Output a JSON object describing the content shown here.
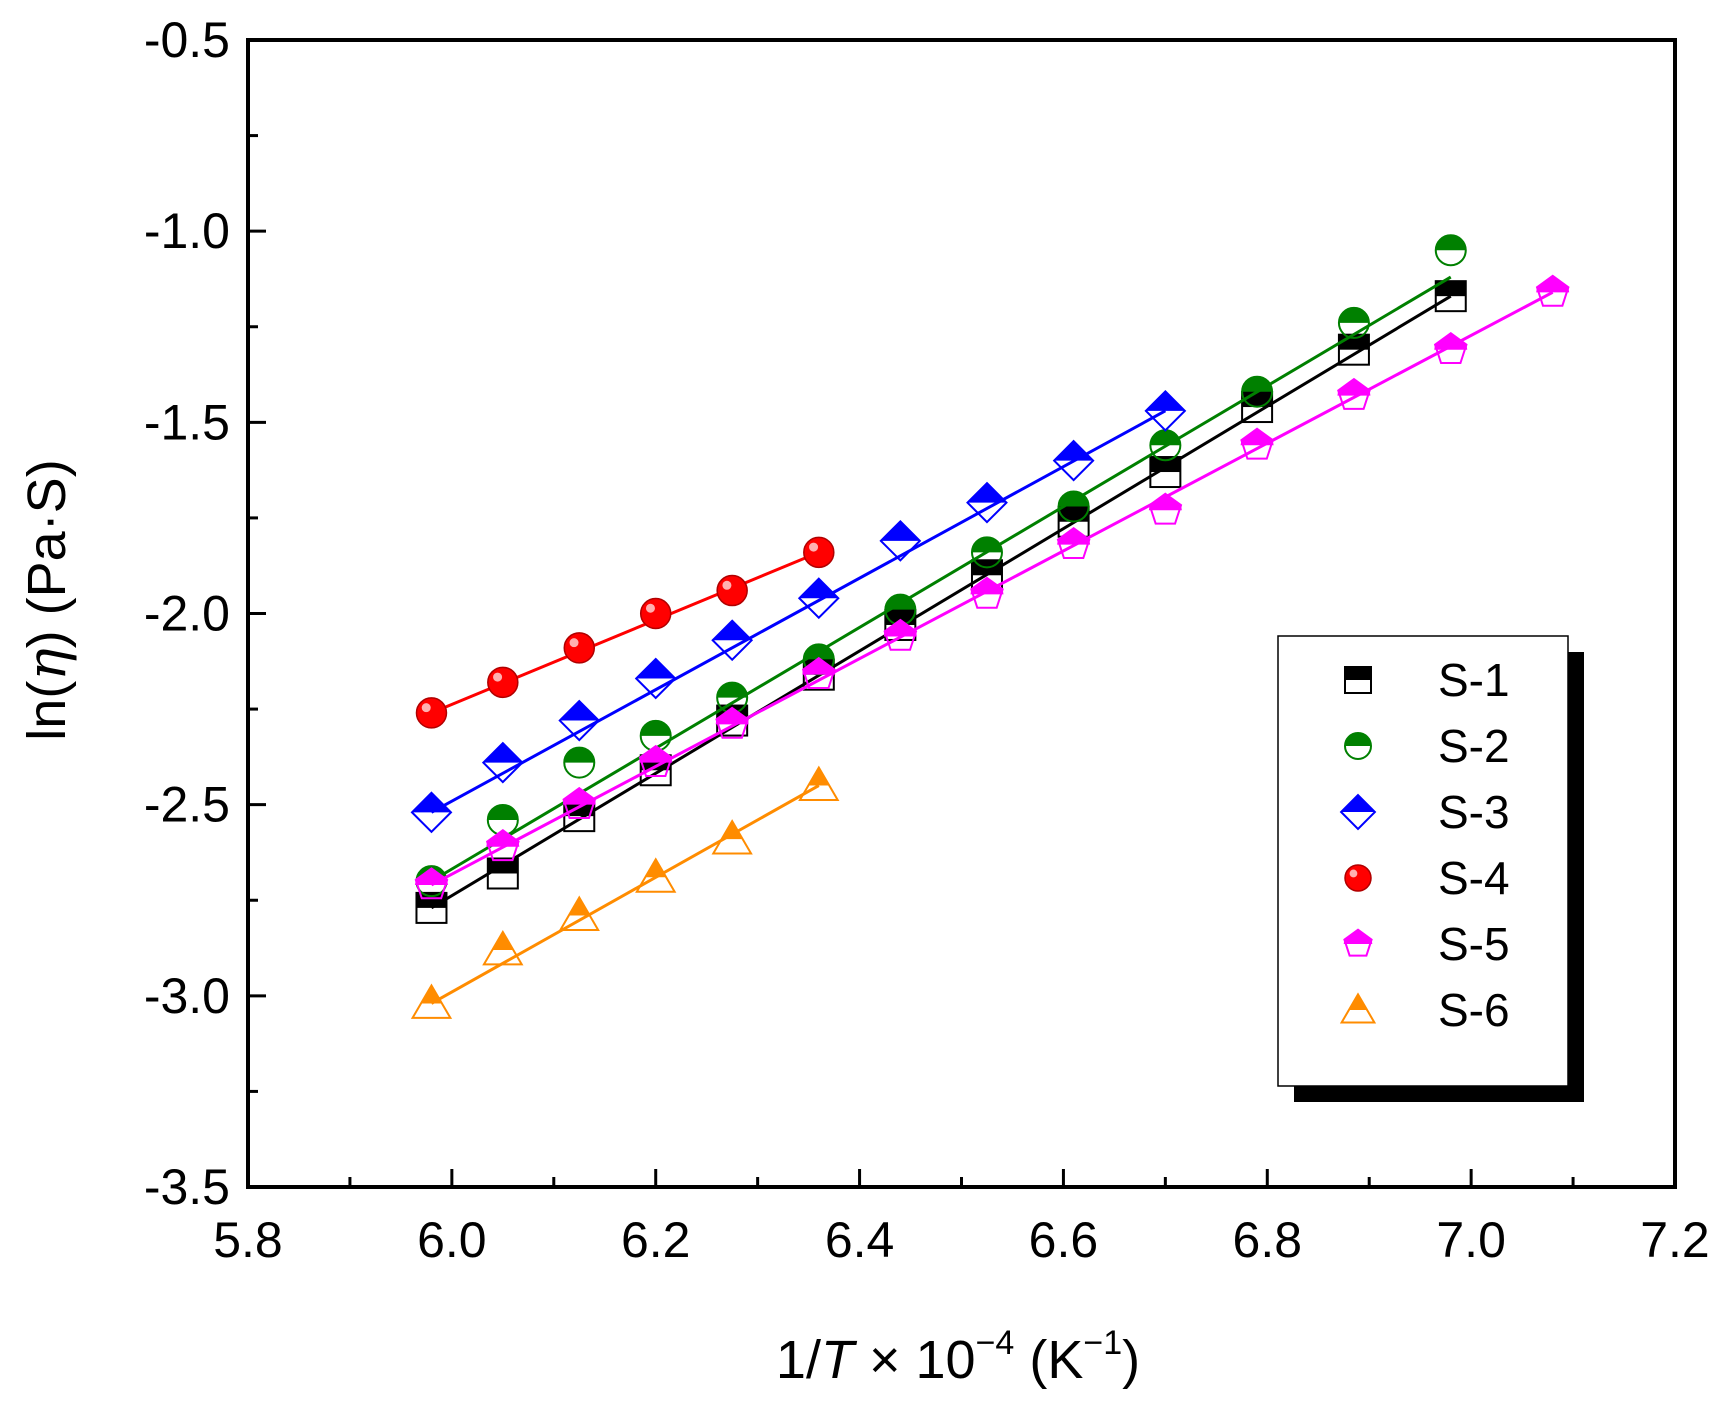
{
  "chart_data": {
    "type": "scatter",
    "title": "",
    "xlabel": "1/T × 10⁻⁴ (K⁻¹)",
    "xlabel_parts": {
      "prefix": "1/",
      "var": "T",
      "mid": " × 10",
      "sup": "−4",
      "unit_open": " (K",
      "unit_sup": "−1",
      "unit_close": ")"
    },
    "ylabel": "ln(η) (Pa·S)",
    "ylabel_parts": {
      "prefix": "ln(",
      "var": "η",
      "suffix": ") (Pa·S)"
    },
    "xlim": [
      5.8,
      7.2
    ],
    "ylim": [
      -3.5,
      -0.5
    ],
    "xticks": [
      "5.8",
      "6.0",
      "6.2",
      "6.4",
      "6.6",
      "6.8",
      "7.0",
      "7.2"
    ],
    "yticks": [
      "-0.5",
      "-1.0",
      "-1.5",
      "-2.0",
      "-2.5",
      "-3.0",
      "-3.5"
    ],
    "grid": false,
    "legend_position": "right-middle",
    "series": [
      {
        "name": "S-1",
        "color": "#000000",
        "marker": "square",
        "x": [
          5.98,
          6.05,
          6.125,
          6.2,
          6.275,
          6.36,
          6.44,
          6.525,
          6.61,
          6.7,
          6.79,
          6.885,
          6.98
        ],
        "y": [
          -2.77,
          -2.68,
          -2.53,
          -2.41,
          -2.28,
          -2.16,
          -2.03,
          -1.9,
          -1.76,
          -1.63,
          -1.46,
          -1.31,
          -1.17
        ],
        "fit": [
          [
            5.98,
            -2.77
          ],
          [
            6.98,
            -1.17
          ]
        ]
      },
      {
        "name": "S-2",
        "color": "#008000",
        "marker": "circle-half",
        "x": [
          5.98,
          6.05,
          6.125,
          6.2,
          6.275,
          6.36,
          6.44,
          6.525,
          6.61,
          6.7,
          6.79,
          6.885,
          6.98
        ],
        "y": [
          -2.7,
          -2.54,
          -2.39,
          -2.32,
          -2.22,
          -2.12,
          -1.99,
          -1.84,
          -1.72,
          -1.56,
          -1.42,
          -1.24,
          -1.05
        ],
        "fit": [
          [
            5.98,
            -2.7
          ],
          [
            6.98,
            -1.12
          ]
        ]
      },
      {
        "name": "S-3",
        "color": "#0000ff",
        "marker": "diamond",
        "x": [
          5.98,
          6.05,
          6.125,
          6.2,
          6.275,
          6.36,
          6.44,
          6.525,
          6.61,
          6.7
        ],
        "y": [
          -2.52,
          -2.39,
          -2.28,
          -2.17,
          -2.07,
          -1.96,
          -1.81,
          -1.71,
          -1.6,
          -1.47
        ],
        "fit": [
          [
            5.98,
            -2.52
          ],
          [
            6.7,
            -1.47
          ]
        ]
      },
      {
        "name": "S-4",
        "color": "#ff0000",
        "marker": "ball",
        "x": [
          5.98,
          6.05,
          6.125,
          6.2,
          6.275,
          6.36
        ],
        "y": [
          -2.26,
          -2.18,
          -2.09,
          -2.0,
          -1.94,
          -1.84
        ],
        "fit": [
          [
            5.98,
            -2.26
          ],
          [
            6.36,
            -1.84
          ]
        ]
      },
      {
        "name": "S-5",
        "color": "#ff00ff",
        "marker": "pentagon",
        "x": [
          5.98,
          6.05,
          6.125,
          6.2,
          6.275,
          6.36,
          6.44,
          6.525,
          6.61,
          6.7,
          6.79,
          6.885,
          6.98,
          7.08
        ],
        "y": [
          -2.71,
          -2.61,
          -2.5,
          -2.39,
          -2.29,
          -2.16,
          -2.06,
          -1.95,
          -1.82,
          -1.73,
          -1.56,
          -1.43,
          -1.31,
          -1.16
        ],
        "fit": [
          [
            5.98,
            -2.71
          ],
          [
            7.08,
            -1.16
          ]
        ]
      },
      {
        "name": "S-6",
        "color": "#ff8c00",
        "marker": "triangle",
        "x": [
          5.98,
          6.05,
          6.125,
          6.2,
          6.275,
          6.36
        ],
        "y": [
          -3.02,
          -2.88,
          -2.79,
          -2.69,
          -2.59,
          -2.45
        ],
        "fit": [
          [
            5.98,
            -3.02
          ],
          [
            6.36,
            -2.45
          ]
        ]
      }
    ]
  }
}
